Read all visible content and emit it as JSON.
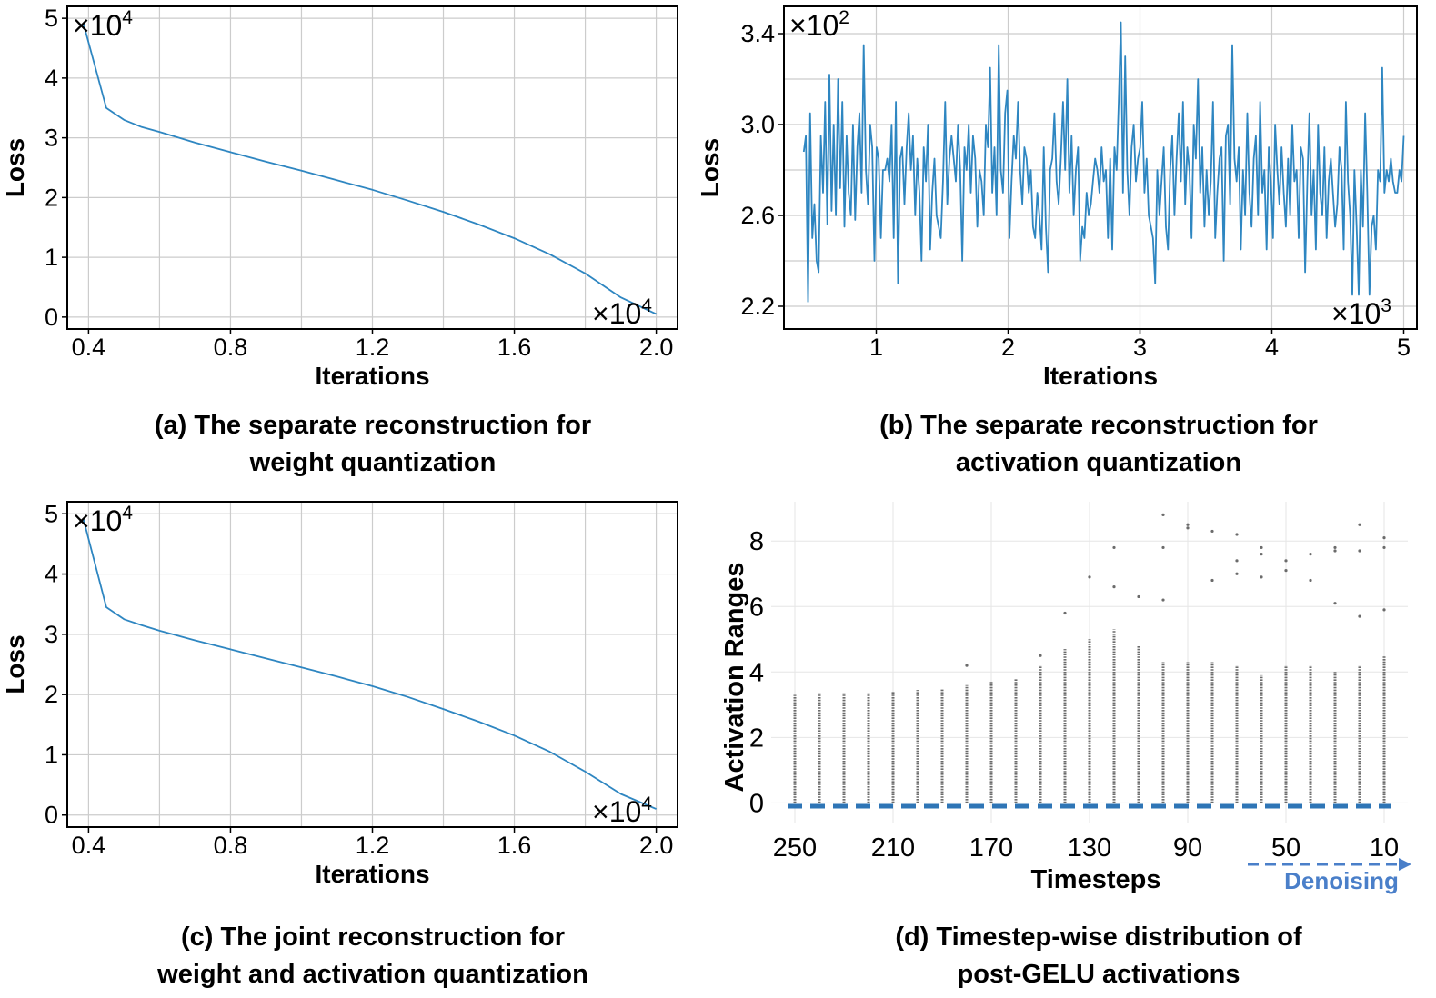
{
  "colors": {
    "line": "#2e86c1",
    "points": "#6b6b6b",
    "dash": "#2e75b6",
    "denoise": "#4a7fc9",
    "grid": "#cccccc"
  },
  "panels": [
    {
      "caption_l1": "(a) The separate reconstruction for",
      "caption_l2": "weight quantization",
      "chart_data": {
        "type": "line",
        "xlabel": "Iterations",
        "ylabel": "Loss",
        "xlim": [
          0.34,
          2.06
        ],
        "ylim": [
          -0.2,
          5.2
        ],
        "xticks": [
          0.4,
          0.8,
          1.2,
          1.6,
          2.0
        ],
        "xtick_labels": [
          "0.4",
          "0.8",
          "1.2",
          "1.6",
          "2.0"
        ],
        "yticks": [
          0,
          1,
          2,
          3,
          4,
          5
        ],
        "ytick_labels": [
          "0",
          "1",
          "2",
          "3",
          "4",
          "5"
        ],
        "minor_x_grid": [
          0.6,
          1.0,
          1.4,
          1.8
        ],
        "x_multiplier": {
          "base": "×10",
          "exp": "4"
        },
        "y_multiplier": {
          "base": "×10",
          "exp": "4"
        },
        "grid": true,
        "x": [
          0.385,
          0.45,
          0.5,
          0.55,
          0.6,
          0.7,
          0.8,
          0.9,
          1.0,
          1.1,
          1.2,
          1.3,
          1.4,
          1.5,
          1.6,
          1.7,
          1.8,
          1.9,
          2.0
        ],
        "y": [
          4.92,
          3.5,
          3.3,
          3.18,
          3.1,
          2.92,
          2.76,
          2.6,
          2.45,
          2.29,
          2.13,
          1.95,
          1.76,
          1.55,
          1.32,
          1.05,
          0.73,
          0.33,
          0.05
        ]
      }
    },
    {
      "caption_l1": "(b) The separate reconstruction for",
      "caption_l2": "activation quantization",
      "chart_data": {
        "type": "line",
        "xlabel": "Iterations",
        "ylabel": "Loss",
        "xlim": [
          0.3,
          5.1
        ],
        "ylim": [
          2.1,
          3.52
        ],
        "xticks": [
          1,
          2,
          3,
          4,
          5
        ],
        "xtick_labels": [
          "1",
          "2",
          "3",
          "4",
          "5"
        ],
        "yticks": [
          2.2,
          2.6,
          3.0,
          3.4
        ],
        "ytick_labels": [
          "2.2",
          "2.6",
          "3.0",
          "3.4"
        ],
        "minor_y_grid": [
          2.4,
          2.8,
          3.2
        ],
        "x_multiplier": {
          "base": "×10",
          "exp": "3"
        },
        "y_multiplier": {
          "base": "×10",
          "exp": "2"
        },
        "grid": true,
        "x_start": 0.45,
        "x_end": 5.0,
        "y": [
          2.88,
          2.95,
          2.22,
          3.05,
          2.5,
          2.65,
          2.4,
          2.35,
          2.95,
          2.7,
          3.1,
          2.56,
          3.22,
          2.62,
          3.0,
          2.6,
          3.2,
          2.72,
          3.1,
          2.55,
          2.95,
          2.7,
          2.6,
          3.0,
          2.58,
          2.9,
          3.05,
          2.7,
          3.35,
          2.8,
          2.65,
          3.0,
          2.9,
          2.4,
          2.9,
          2.85,
          2.5,
          2.8,
          2.8,
          2.85,
          2.75,
          3.0,
          2.5,
          3.1,
          2.3,
          2.85,
          2.9,
          2.65,
          2.9,
          3.05,
          2.8,
          2.95,
          2.6,
          2.85,
          2.7,
          2.4,
          2.9,
          2.75,
          3.0,
          2.45,
          2.7,
          2.85,
          2.6,
          2.55,
          2.5,
          2.75,
          3.1,
          2.65,
          2.85,
          2.95,
          2.85,
          2.75,
          3.0,
          2.8,
          2.4,
          2.9,
          2.8,
          3.0,
          2.7,
          2.95,
          2.85,
          2.55,
          2.8,
          2.75,
          2.6,
          3.0,
          2.9,
          3.25,
          2.7,
          2.9,
          2.6,
          3.35,
          2.8,
          2.7,
          3.05,
          3.15,
          2.5,
          2.75,
          2.95,
          2.85,
          3.1,
          2.8,
          2.65,
          2.9,
          2.85,
          2.7,
          2.8,
          2.55,
          2.5,
          2.7,
          2.6,
          2.45,
          2.9,
          2.55,
          2.35,
          2.8,
          2.85,
          3.05,
          2.75,
          2.65,
          2.85,
          3.1,
          2.8,
          3.2,
          2.7,
          2.95,
          2.6,
          2.8,
          2.9,
          2.4,
          2.55,
          2.5,
          2.7,
          2.6,
          2.65,
          2.75,
          2.85,
          2.8,
          2.7,
          2.9,
          2.75,
          2.8,
          2.5,
          2.85,
          2.45,
          2.9,
          2.8,
          3.1,
          3.45,
          2.7,
          3.3,
          2.8,
          2.6,
          2.9,
          3.0,
          2.75,
          2.85,
          2.9,
          3.1,
          2.7,
          2.85,
          2.6,
          2.55,
          2.5,
          2.3,
          2.8,
          2.6,
          2.75,
          2.9,
          2.55,
          2.45,
          2.8,
          2.95,
          2.6,
          2.85,
          3.05,
          2.75,
          3.1,
          2.65,
          2.9,
          2.8,
          2.5,
          3.0,
          2.85,
          3.2,
          2.7,
          2.9,
          2.55,
          2.8,
          2.6,
          2.75,
          3.1,
          2.5,
          2.7,
          2.85,
          2.9,
          2.4,
          2.95,
          3.0,
          2.65,
          3.35,
          2.85,
          2.75,
          2.9,
          2.45,
          2.8,
          2.6,
          3.05,
          2.7,
          2.55,
          2.85,
          2.95,
          2.6,
          3.1,
          2.7,
          2.8,
          2.45,
          2.9,
          2.75,
          2.5,
          3.0,
          2.8,
          2.65,
          2.9,
          2.7,
          2.55,
          2.85,
          2.6,
          3.0,
          2.75,
          2.8,
          2.5,
          2.9,
          2.85,
          2.35,
          2.75,
          3.05,
          2.6,
          2.8,
          2.45,
          3.0,
          2.7,
          2.6,
          2.9,
          2.5,
          2.75,
          2.85,
          2.7,
          2.55,
          2.65,
          2.9,
          2.8,
          2.45,
          3.1,
          2.75,
          2.6,
          2.25,
          2.8,
          2.55,
          2.25,
          2.8,
          2.55,
          3.05,
          2.7,
          2.25,
          2.55,
          2.6,
          2.45,
          2.8,
          2.75,
          3.25,
          2.7,
          2.8,
          2.75,
          2.85,
          2.75,
          2.7,
          2.7,
          2.8,
          2.75,
          2.95
        ]
      }
    },
    {
      "caption_l1": "(c) The joint reconstruction for",
      "caption_l2": "weight and activation quantization",
      "chart_data": {
        "type": "line",
        "xlabel": "Iterations",
        "ylabel": "Loss",
        "xlim": [
          0.34,
          2.06
        ],
        "ylim": [
          -0.2,
          5.2
        ],
        "xticks": [
          0.4,
          0.8,
          1.2,
          1.6,
          2.0
        ],
        "xtick_labels": [
          "0.4",
          "0.8",
          "1.2",
          "1.6",
          "2.0"
        ],
        "yticks": [
          0,
          1,
          2,
          3,
          4,
          5
        ],
        "ytick_labels": [
          "0",
          "1",
          "2",
          "3",
          "4",
          "5"
        ],
        "minor_x_grid": [
          0.6,
          1.0,
          1.4,
          1.8
        ],
        "x_multiplier": {
          "base": "×10",
          "exp": "4"
        },
        "y_multiplier": {
          "base": "×10",
          "exp": "4"
        },
        "grid": true,
        "x": [
          0.385,
          0.45,
          0.5,
          0.55,
          0.6,
          0.7,
          0.8,
          0.9,
          1.0,
          1.1,
          1.2,
          1.3,
          1.4,
          1.5,
          1.6,
          1.7,
          1.8,
          1.9,
          2.0
        ],
        "y": [
          4.92,
          3.45,
          3.25,
          3.15,
          3.06,
          2.9,
          2.75,
          2.6,
          2.45,
          2.3,
          2.14,
          1.96,
          1.76,
          1.55,
          1.32,
          1.05,
          0.72,
          0.35,
          0.1
        ]
      }
    },
    {
      "caption_l1": "(d) Timestep-wise distribution of",
      "caption_l2": "post-GELU activations",
      "chart_data": {
        "type": "scatter",
        "xlabel": "Timesteps",
        "ylabel": "Activation Ranges",
        "ylim": [
          -0.6,
          9.2
        ],
        "xtick_labels": [
          "250",
          "210",
          "170",
          "130",
          "90",
          "50",
          "10"
        ],
        "yticks": [
          0,
          2,
          4,
          6,
          8
        ],
        "ytick_labels": [
          "0",
          "2",
          "4",
          "6",
          "8"
        ],
        "grid": true,
        "annotation": "Denoising",
        "timesteps": [
          250,
          240,
          230,
          220,
          210,
          200,
          190,
          180,
          170,
          160,
          150,
          140,
          130,
          120,
          110,
          100,
          90,
          80,
          70,
          60,
          50,
          40,
          30,
          20,
          10
        ],
        "dense_max": [
          3.3,
          3.35,
          3.35,
          3.35,
          3.4,
          3.45,
          3.5,
          3.6,
          3.7,
          3.8,
          4.2,
          4.7,
          5.0,
          5.3,
          4.8,
          4.3,
          4.3,
          4.3,
          4.2,
          3.9,
          4.2,
          4.2,
          4.0,
          4.2,
          4.5
        ],
        "outliers": [
          [],
          [],
          [],
          [],
          [],
          [],
          [],
          [
            4.2
          ],
          [],
          [],
          [
            4.5
          ],
          [
            5.8
          ],
          [
            6.9
          ],
          [
            6.6,
            7.8
          ],
          [
            6.3
          ],
          [
            6.2,
            7.8,
            8.8
          ],
          [
            8.5,
            8.4
          ],
          [
            6.8,
            8.3
          ],
          [
            7.0,
            8.2,
            7.4
          ],
          [
            6.9,
            7.8,
            7.6
          ],
          [
            7.1,
            7.4
          ],
          [
            6.8,
            7.6
          ],
          [
            6.1,
            7.8,
            7.7
          ],
          [
            5.7,
            8.5,
            7.7
          ],
          [
            5.9,
            8.1,
            7.8
          ]
        ],
        "baseline": -0.1
      }
    }
  ]
}
